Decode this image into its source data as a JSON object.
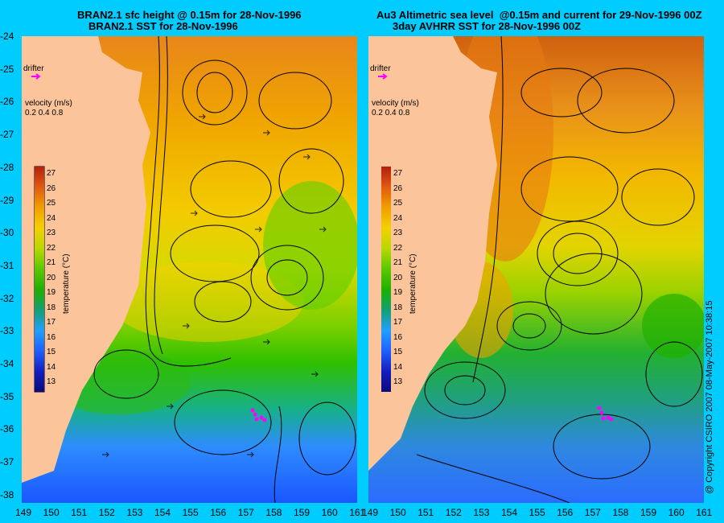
{
  "left_panel": {
    "title_line1": "BRAN2.1 sfc height @ 0.15m for 28-Nov-1996",
    "title_line2": "BRAN2.1 SST for 28-Nov-1996",
    "drifter_label": "drifter",
    "velocity_label": "velocity (m/s)",
    "velocity_scale": [
      "0.2",
      "0.4",
      "0.8"
    ],
    "colorbar_label": "temperature (°C)"
  },
  "right_panel": {
    "title_line1": "Au3 Altimetric sea level  @0.15m and current for 29-Nov-1996 00Z",
    "title_line2": "3day AVHRR SST for 28-Nov-1996 00Z",
    "drifter_label": "drifter",
    "velocity_label": "velocity (m/s)",
    "velocity_scale": [
      "0.2",
      "0.4",
      "0.8"
    ],
    "colorbar_label": "temperature (°C)"
  },
  "colorbar_ticks": [
    "27",
    "26",
    "25",
    "24",
    "23",
    "22",
    "21",
    "20",
    "19",
    "18",
    "17",
    "16",
    "15",
    "14",
    "13"
  ],
  "lat_ticks": [
    "-24",
    "-25",
    "-26",
    "-27",
    "-28",
    "-29",
    "-30",
    "-31",
    "-32",
    "-33",
    "-34",
    "-35",
    "-36",
    "-37",
    "-38"
  ],
  "lon_ticks": [
    "149",
    "150",
    "151",
    "152",
    "153",
    "154",
    "155",
    "156",
    "157",
    "158",
    "159",
    "160",
    "161"
  ],
  "copyright": "@ Copyright CSIRO 2007 08-May-2007 10:38:15",
  "colors": {
    "background": "#00ccff",
    "land": "#fbc49a",
    "drifter": "#ff00ff",
    "warm": "#e07a00",
    "cool": "#1f6dff"
  }
}
